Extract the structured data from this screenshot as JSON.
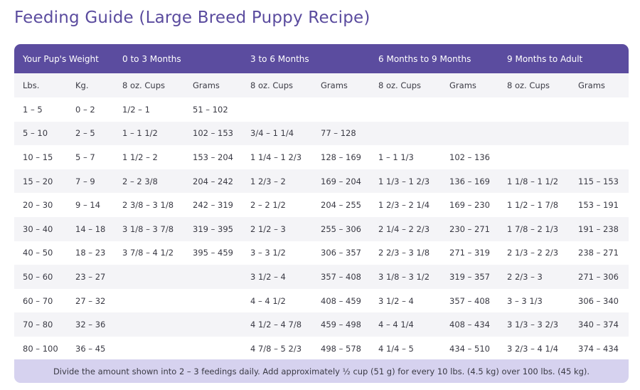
{
  "title": "Feeding Guide (Large Breed Puppy Recipe)",
  "header": {
    "weight": "Your Pup's Weight",
    "groups": [
      "0 to 3 Months",
      "3 to 6 Months",
      "6 Months to 9 Months",
      "9 Months to Adult"
    ]
  },
  "subheader": [
    "Lbs.",
    "Kg.",
    "8 oz. Cups",
    "Grams",
    "8 oz. Cups",
    "Grams",
    "8 oz. Cups",
    "Grams",
    "8 oz. Cups",
    "Grams"
  ],
  "rows": [
    [
      "1 – 5",
      "0 – 2",
      "1/2 – 1",
      "51 – 102",
      "",
      "",
      "",
      "",
      "",
      ""
    ],
    [
      "5 – 10",
      "2 – 5",
      "1 – 1 1/2",
      "102 – 153",
      "3/4 – 1 1/4",
      "77 – 128",
      "",
      "",
      "",
      ""
    ],
    [
      "10 – 15",
      "5 – 7",
      "1 1/2 – 2",
      "153 – 204",
      "1 1/4 – 1 2/3",
      "128 – 169",
      "1 – 1 1/3",
      "102 – 136",
      "",
      ""
    ],
    [
      "15 – 20",
      "7 – 9",
      "2 – 2 3/8",
      "204 – 242",
      "1 2/3 – 2",
      "169 – 204",
      "1 1/3 – 1 2/3",
      "136 – 169",
      "1 1/8 – 1 1/2",
      "115 – 153"
    ],
    [
      "20 – 30",
      "9 – 14",
      "2 3/8 – 3 1/8",
      "242 – 319",
      "2 – 2 1/2",
      "204 – 255",
      "1 2/3 – 2 1/4",
      "169 – 230",
      "1 1/2 – 1 7/8",
      "153 – 191"
    ],
    [
      "30 – 40",
      "14 – 18",
      "3 1/8 – 3 7/8",
      "319 – 395",
      "2 1/2 – 3",
      "255 – 306",
      "2 1/4 – 2 2/3",
      "230 – 271",
      "1 7/8 – 2 1/3",
      "191 – 238"
    ],
    [
      "40 – 50",
      "18 – 23",
      "3 7/8 – 4 1/2",
      "395 – 459",
      "3 – 3 1/2",
      "306 – 357",
      "2 2/3 – 3 1/8",
      "271 – 319",
      "2 1/3 – 2 2/3",
      "238 – 271"
    ],
    [
      "50 – 60",
      "23 – 27",
      "",
      "",
      "3 1/2 – 4",
      "357 – 408",
      "3 1/8 – 3 1/2",
      "319 – 357",
      "2 2/3 – 3",
      "271 – 306"
    ],
    [
      "60 – 70",
      "27 – 32",
      "",
      "",
      "4 – 4 1/2",
      "408 – 459",
      "3 1/2 – 4",
      "357 – 408",
      "3 – 3 1/3",
      "306 – 340"
    ],
    [
      "70 – 80",
      "32 – 36",
      "",
      "",
      "4 1/2 – 4 7/8",
      "459 – 498",
      "4 – 4 1/4",
      "408 – 434",
      "3 1/3 – 3 2/3",
      "340 – 374"
    ],
    [
      "80 – 100",
      "36 – 45",
      "",
      "",
      "4 7/8 – 5 2/3",
      "498 – 578",
      "4 1/4 – 5",
      "434 – 510",
      "3 2/3 – 4 1/4",
      "374 – 434"
    ]
  ],
  "footer": "Divide the amount shown into 2 – 3 feedings daily. Add approximately ½ cup (51 g) for every 10 lbs. (4.5 kg) over 100 lbs. (45 kg).",
  "colors": {
    "title": "#5a4b9e",
    "header_bg": "#5b4c9f",
    "footer_bg": "#d6d2ef",
    "row_alt": "#f4f4f7"
  }
}
